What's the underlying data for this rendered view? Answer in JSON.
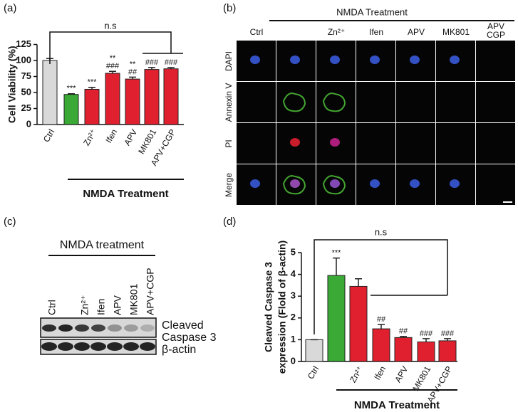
{
  "chart_data": [
    {
      "type": "bar",
      "panel_label": "(a)",
      "ylabel": "Cell Viability (%)",
      "categories": [
        "Ctrl",
        null,
        "Zn²⁺",
        "Ifen",
        "APV",
        "MK801",
        "APV+CGP"
      ],
      "values": [
        100,
        47,
        55,
        80,
        71,
        86,
        87
      ],
      "errors": [
        3,
        1,
        3,
        3,
        3,
        3,
        2
      ],
      "colors": [
        "#d9d9d9",
        "#3aa935",
        "#e0202e",
        "#e0202e",
        "#e0202e",
        "#e0202e",
        "#e0202e"
      ],
      "significance": [
        null,
        [
          "***"
        ],
        [
          "***"
        ],
        [
          "**",
          "###"
        ],
        [
          "**",
          "##"
        ],
        [
          "###"
        ],
        [
          "###"
        ]
      ],
      "ylim": [
        0,
        125
      ],
      "yticks": [
        0,
        25,
        50,
        75,
        100,
        125
      ],
      "bracket_label": "n.s",
      "group_label": "NMDA Treatment"
    },
    {
      "type": "bar",
      "panel_label": "(d)",
      "ylabel": [
        "Cleaved Caspase 3",
        "expression (Flold of β-actin)"
      ],
      "categories": [
        "Ctrl",
        null,
        "Zn²⁺",
        "Ifen",
        "APV",
        "MK801",
        "APV+CGP"
      ],
      "values": [
        1,
        3.95,
        3.45,
        1.5,
        1.1,
        0.9,
        0.95
      ],
      "errors": [
        0,
        0.8,
        0.35,
        0.2,
        0.05,
        0.15,
        0.1
      ],
      "colors": [
        "#d9d9d9",
        "#3aa935",
        "#e0202e",
        "#e0202e",
        "#e0202e",
        "#e0202e",
        "#e0202e"
      ],
      "significance": [
        null,
        [
          "***"
        ],
        null,
        [
          "##"
        ],
        [
          "##"
        ],
        [
          "###"
        ],
        [
          "###"
        ]
      ],
      "ylim": [
        0,
        5
      ],
      "yticks": [
        0,
        1,
        2,
        3,
        4,
        5
      ],
      "bracket_label": "n.s",
      "group_label": "NMDA Treatment"
    }
  ],
  "microscopy": {
    "panel_label": "(b)",
    "group_label": "NMDA Treatment",
    "columns": [
      "Ctrl",
      "Zn²⁺",
      "Ifen",
      "APV",
      "MK801",
      [
        "APV",
        "CGP"
      ]
    ],
    "rows": [
      {
        "label": "DAPI",
        "color": "#2a4fc4"
      },
      {
        "label": "Annexin V",
        "color": "#3a9a2a"
      },
      {
        "label": "PI",
        "color": "#e0202e"
      },
      {
        "label": "Merge",
        "color": "#f0a020"
      }
    ]
  },
  "blot": {
    "panel_label": "(c)",
    "group_label": "NMDA treatment",
    "lanes": [
      "Ctrl",
      null,
      "Zn²⁺",
      "Ifen",
      "APV",
      "MK801",
      "APV+CGP"
    ],
    "bands": [
      [
        "Cleaved",
        "Caspase 3"
      ],
      [
        "β-actin"
      ]
    ]
  }
}
